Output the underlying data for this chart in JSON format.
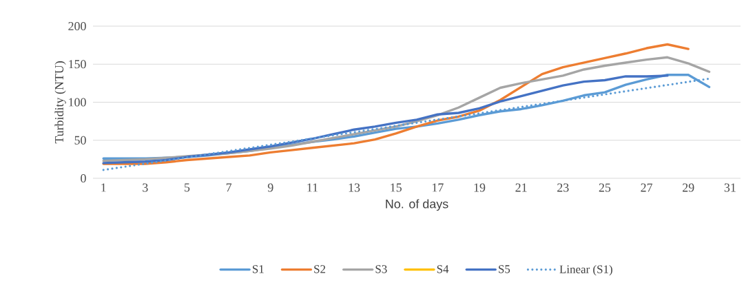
{
  "chart_data": {
    "type": "line",
    "xlabel": "No. of days",
    "ylabel": "Turbidity (NTU)",
    "xlim": [
      0.5,
      31.5
    ],
    "xticks": [
      1,
      3,
      5,
      7,
      9,
      11,
      13,
      15,
      17,
      19,
      21,
      23,
      25,
      27,
      29,
      31
    ],
    "ylim": [
      0,
      200
    ],
    "yticks": [
      0,
      50,
      100,
      150,
      200
    ],
    "grid": "y",
    "legend": "bottom",
    "line_style": "solid",
    "marker": "none",
    "x": [
      1,
      2,
      3,
      4,
      5,
      6,
      7,
      8,
      9,
      10,
      11,
      12,
      13,
      14,
      15,
      16,
      17,
      18,
      19,
      20,
      21,
      22,
      23,
      24,
      25,
      26,
      27,
      28,
      29,
      30
    ],
    "series": [
      {
        "name": "S1",
        "color": "#5b9bd5",
        "values": [
          26,
          26,
          26,
          27,
          28,
          30,
          33,
          36,
          40,
          44,
          48,
          51,
          55,
          60,
          65,
          68,
          72,
          77,
          83,
          88,
          91,
          96,
          102,
          109,
          113,
          123,
          130,
          136,
          136,
          120
        ]
      },
      {
        "name": "S2",
        "color": "#ed7d31",
        "values": [
          19,
          19,
          19,
          21,
          24,
          26,
          28,
          30,
          34,
          37,
          40,
          43,
          46,
          51,
          59,
          68,
          76,
          81,
          89,
          103,
          120,
          137,
          146,
          152,
          158,
          164,
          171,
          176,
          170,
          null
        ]
      },
      {
        "name": "S3",
        "color": "#a5a5a5",
        "values": [
          23,
          24,
          25,
          27,
          29,
          31,
          33,
          36,
          39,
          43,
          48,
          53,
          58,
          63,
          68,
          75,
          83,
          93,
          106,
          119,
          125,
          130,
          135,
          143,
          148,
          152,
          156,
          159,
          151,
          140
        ]
      },
      {
        "name": "S4",
        "color": "#ffc000",
        "values": [
          null,
          null,
          null,
          null,
          null,
          null,
          null,
          null,
          null,
          null,
          null,
          null,
          null,
          null,
          null,
          null,
          null,
          null,
          null,
          null,
          null,
          null,
          null,
          null,
          null,
          null,
          null,
          null,
          null,
          null
        ]
      },
      {
        "name": "S5",
        "color": "#4472c4",
        "values": [
          20,
          21,
          22,
          24,
          28,
          31,
          34,
          38,
          42,
          47,
          52,
          58,
          64,
          68,
          73,
          77,
          84,
          86,
          92,
          101,
          108,
          115,
          122,
          127,
          129,
          134,
          134,
          135,
          null,
          null
        ]
      },
      {
        "name": "Linear (S1)",
        "color": "#5b9bd5",
        "type": "line",
        "line_style": "dotted",
        "x": [
          1,
          30
        ],
        "values": [
          11,
          131
        ]
      }
    ]
  }
}
